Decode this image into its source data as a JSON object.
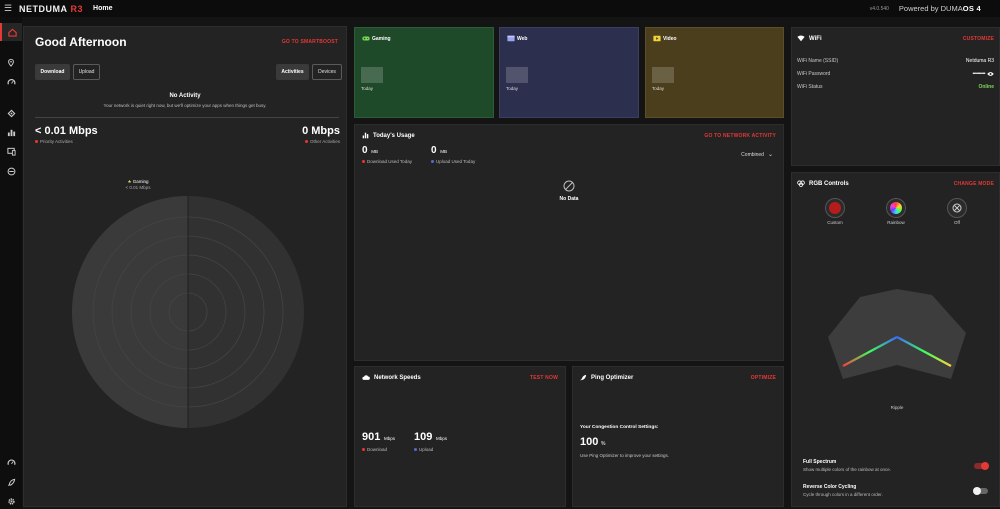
{
  "topbar": {
    "brand_main": "NETDUMA",
    "brand_model": "R3",
    "page_title": "Home",
    "version": "v4.0.540",
    "powered_prefix": "Powered by DUMA",
    "powered_os": "OS 4"
  },
  "sidebar": {
    "items": [
      "home-icon",
      "location-pin-icon",
      "speedometer-icon",
      "shield-icon",
      "bar-chart-icon",
      "devices-icon",
      "block-icon",
      "gauge-icon",
      "rocket-icon",
      "gear-icon"
    ]
  },
  "overview": {
    "greeting": "Good Afternoon",
    "smartboost_link": "GO TO SMARTBOOST",
    "download_btn": "Download",
    "upload_btn": "Upload",
    "activities_btn": "Activities",
    "devices_btn": "Devices",
    "no_activity_title": "No Activity",
    "no_activity_desc": "Your network is quiet right now, but we'll optimize your apps when things get busy.",
    "priority_speed": "< 0.01 Mbps",
    "priority_label": "Priority Activities",
    "other_speed": "0 Mbps",
    "other_label": "Other Activities",
    "gaming_label": "Gaming",
    "gaming_speed": "< 0.01 Mbps"
  },
  "tiles": [
    {
      "name": "Gaming",
      "today": "Today",
      "color": "#1f4a2a"
    },
    {
      "name": "Web",
      "today": "Today",
      "color": "#2c2f4d"
    },
    {
      "name": "Video",
      "today": "Today",
      "color": "#4a3e1c"
    }
  ],
  "usage": {
    "title": "Today's Usage",
    "link": "GO TO NETWORK ACTIVITY",
    "download_value": "0",
    "download_unit": "MB",
    "download_label": "Download Used Today",
    "upload_value": "0",
    "upload_unit": "MB",
    "upload_label": "Upload Used Today",
    "filter": "Combined",
    "no_data": "No Data"
  },
  "speeds": {
    "title": "Network Speeds",
    "link": "TEST NOW",
    "download_value": "901",
    "download_unit": "Mbps",
    "download_label": "Download",
    "upload_value": "109",
    "upload_unit": "Mbps",
    "upload_label": "Upload"
  },
  "ping": {
    "title": "Ping Optimizer",
    "link": "OPTIMIZE",
    "settings_label": "Your Congestion Control Settings:",
    "value": "100",
    "unit": "%",
    "desc": "Use Ping Optimizer to improve your settings."
  },
  "wifi": {
    "title": "WiFi",
    "link": "CUSTOMIZE",
    "ssid_label": "WiFi Name (SSID)",
    "ssid_value": "Netduma R3",
    "password_label": "WiFi Password",
    "password_value": "••••••••••",
    "status_label": "WiFi Status",
    "status_value": "Online"
  },
  "rgb": {
    "title": "RGB Controls",
    "link": "CHANGE MODE",
    "options": [
      "Custom",
      "Rainbow",
      "Off"
    ],
    "effect": "Ripple",
    "full_spectrum_title": "Full Spectrum",
    "full_spectrum_desc": "Show multiple colors of the rainbow at once.",
    "reverse_title": "Reverse Color Cycling",
    "reverse_desc": "Cycle through colors in a different order."
  },
  "colors": {
    "accent": "#e53935",
    "online": "#7cd955",
    "download_dot": "#e53935",
    "upload_dot": "#5c6bc0"
  }
}
